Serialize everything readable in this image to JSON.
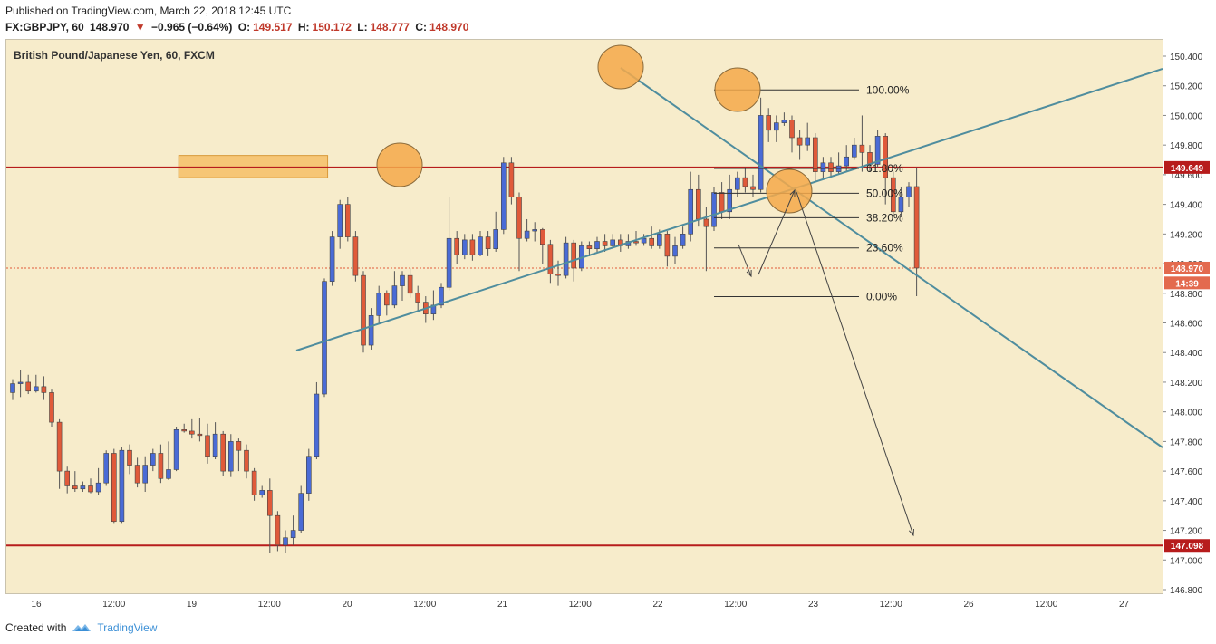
{
  "header": {
    "published": "Published on TradingView.com, March 22, 2018 12:45 UTC",
    "symbol": "FX:GBPJPY, 60",
    "last": "148.970",
    "change": "−0.965 (−0.64%)",
    "open_label": "O:",
    "open": "149.517",
    "high_label": "H:",
    "high": "150.172",
    "low_label": "L:",
    "low": "148.777",
    "close_label": "C:",
    "close": "148.970"
  },
  "footer": {
    "created_with": "Created with",
    "brand": "TradingView"
  },
  "colors": {
    "background": "#f7eccb",
    "up": "#4a6bd6",
    "down": "#e05a3a",
    "level": "#b71c1c",
    "zone": "#f5b95a",
    "trendline": "#4f8d9e"
  },
  "chart_data": {
    "type": "candlestick",
    "title": "British Pound/Japanese Yen, 60, FXCM",
    "ylim": [
      146.8,
      150.48
    ],
    "y_ticks": [
      "146.800",
      "147.000",
      "147.200",
      "147.400",
      "147.600",
      "147.800",
      "148.000",
      "148.200",
      "148.400",
      "148.600",
      "148.800",
      "149.000",
      "149.200",
      "149.400",
      "149.600",
      "149.800",
      "150.000",
      "150.200",
      "150.400"
    ],
    "x_ticks": [
      "16",
      "12:00",
      "19",
      "12:00",
      "20",
      "12:00",
      "21",
      "12:00",
      "22",
      "12:00",
      "23",
      "12:00",
      "26",
      "12:00",
      "27"
    ],
    "price_labels": [
      {
        "value": 149.649,
        "text": "149.649",
        "style": "level"
      },
      {
        "value": 148.97,
        "text": "148.970",
        "style": "current"
      },
      {
        "value": 148.87,
        "text": "14:39",
        "style": "current"
      },
      {
        "value": 147.098,
        "text": "147.098",
        "style": "level"
      }
    ],
    "horizontal_levels": [
      149.649,
      147.098
    ],
    "current_price_line": 148.97,
    "zones": [
      {
        "x_from": "19 20:00",
        "x_to": "21 18:00",
        "y_from": 149.58,
        "y_to": 149.73
      },
      {
        "x_from": "18 20:00",
        "x_to": "23 22:00",
        "y_from": 147.02,
        "y_to": 147.18
      }
    ],
    "fibonacci": {
      "levels": [
        {
          "label": "100.00%",
          "value": 150.172
        },
        {
          "label": "61.80%",
          "value": 149.642
        },
        {
          "label": "50.00%",
          "value": 149.475
        },
        {
          "label": "38.20%",
          "value": 149.31
        },
        {
          "label": "23.60%",
          "value": 149.106
        },
        {
          "label": "0.00%",
          "value": 148.777
        }
      ]
    },
    "candles": [
      [
        148.13,
        148.19,
        148.22,
        148.08
      ],
      [
        148.19,
        148.2,
        148.28,
        148.1
      ],
      [
        148.2,
        148.14,
        148.25,
        148.12
      ],
      [
        148.14,
        148.17,
        148.25,
        148.13
      ],
      [
        148.17,
        148.13,
        148.24,
        148.08
      ],
      [
        148.13,
        147.93,
        148.15,
        147.9
      ],
      [
        147.93,
        147.6,
        147.95,
        147.48
      ],
      [
        147.6,
        147.5,
        147.63,
        147.45
      ],
      [
        147.5,
        147.48,
        147.6,
        147.46
      ],
      [
        147.48,
        147.5,
        147.53,
        147.46
      ],
      [
        147.5,
        147.46,
        147.55,
        147.45
      ],
      [
        147.46,
        147.52,
        147.62,
        147.44
      ],
      [
        147.52,
        147.72,
        147.74,
        147.5
      ],
      [
        147.72,
        147.26,
        147.75,
        147.25
      ],
      [
        147.26,
        147.74,
        147.76,
        147.25
      ],
      [
        147.74,
        147.64,
        147.78,
        147.58
      ],
      [
        147.64,
        147.52,
        147.69,
        147.49
      ],
      [
        147.52,
        147.64,
        147.7,
        147.46
      ],
      [
        147.64,
        147.72,
        147.75,
        147.6
      ],
      [
        147.72,
        147.55,
        147.78,
        147.52
      ],
      [
        147.55,
        147.61,
        147.8,
        147.54
      ],
      [
        147.61,
        147.88,
        147.9,
        147.6
      ],
      [
        147.88,
        147.87,
        147.92,
        147.86
      ],
      [
        147.87,
        147.85,
        147.95,
        147.82
      ],
      [
        147.85,
        147.84,
        147.96,
        147.8
      ],
      [
        147.84,
        147.7,
        147.92,
        147.65
      ],
      [
        147.7,
        147.85,
        147.93,
        147.68
      ],
      [
        147.85,
        147.6,
        147.87,
        147.57
      ],
      [
        147.6,
        147.8,
        147.85,
        147.56
      ],
      [
        147.8,
        147.74,
        147.82,
        147.6
      ],
      [
        147.74,
        147.6,
        147.78,
        147.55
      ],
      [
        147.6,
        147.44,
        147.62,
        147.4
      ],
      [
        147.44,
        147.47,
        147.5,
        147.42
      ],
      [
        147.47,
        147.3,
        147.55,
        147.05
      ],
      [
        147.3,
        147.1,
        147.33,
        147.06
      ],
      [
        147.1,
        147.15,
        147.2,
        147.05
      ],
      [
        147.15,
        147.2,
        147.3,
        147.1
      ],
      [
        147.2,
        147.45,
        147.5,
        147.18
      ],
      [
        147.45,
        147.7,
        147.75,
        147.4
      ],
      [
        147.7,
        148.12,
        148.2,
        147.68
      ],
      [
        148.12,
        148.88,
        148.9,
        148.1
      ],
      [
        148.88,
        149.18,
        149.22,
        148.85
      ],
      [
        149.18,
        149.4,
        149.43,
        149.1
      ],
      [
        149.4,
        149.18,
        149.45,
        149.15
      ],
      [
        149.18,
        148.92,
        149.22,
        148.88
      ],
      [
        148.92,
        148.45,
        148.95,
        148.4
      ],
      [
        148.45,
        148.65,
        148.7,
        148.42
      ],
      [
        148.65,
        148.8,
        148.85,
        148.6
      ],
      [
        148.8,
        148.72,
        148.82,
        148.65
      ],
      [
        148.72,
        148.85,
        148.95,
        148.7
      ],
      [
        148.85,
        148.92,
        148.95,
        148.75
      ],
      [
        148.92,
        148.8,
        148.97,
        148.77
      ],
      [
        148.8,
        148.74,
        148.85,
        148.68
      ],
      [
        148.74,
        148.66,
        148.78,
        148.6
      ],
      [
        148.66,
        148.72,
        148.82,
        148.62
      ],
      [
        148.72,
        148.84,
        148.87,
        148.7
      ],
      [
        148.84,
        149.17,
        149.45,
        148.82
      ],
      [
        149.17,
        149.06,
        149.22,
        149.0
      ],
      [
        149.06,
        149.16,
        149.2,
        149.03
      ],
      [
        149.16,
        149.06,
        149.2,
        149.02
      ],
      [
        149.06,
        149.18,
        149.22,
        149.05
      ],
      [
        149.18,
        149.1,
        149.22,
        149.05
      ],
      [
        149.1,
        149.23,
        149.35,
        149.08
      ],
      [
        149.23,
        149.68,
        149.72,
        149.2
      ],
      [
        149.68,
        149.45,
        149.72,
        149.4
      ],
      [
        149.45,
        149.17,
        149.48,
        148.95
      ],
      [
        149.17,
        149.22,
        149.3,
        149.15
      ],
      [
        149.22,
        149.23,
        149.28,
        149.15
      ],
      [
        149.23,
        149.13,
        149.24,
        149.0
      ],
      [
        149.13,
        148.93,
        149.16,
        148.87
      ],
      [
        148.93,
        148.92,
        149.02,
        148.85
      ],
      [
        148.92,
        149.14,
        149.18,
        148.9
      ],
      [
        149.14,
        148.97,
        149.16,
        148.88
      ],
      [
        148.97,
        149.12,
        149.15,
        148.95
      ],
      [
        149.12,
        149.1,
        149.15,
        149.05
      ],
      [
        149.1,
        149.15,
        149.18,
        149.08
      ],
      [
        149.15,
        149.12,
        149.2,
        149.08
      ],
      [
        149.12,
        149.16,
        149.2,
        149.1
      ],
      [
        149.16,
        149.12,
        149.2,
        149.08
      ],
      [
        149.12,
        149.15,
        149.2,
        149.1
      ],
      [
        149.15,
        149.14,
        149.22,
        149.12
      ],
      [
        149.14,
        149.17,
        149.2,
        149.12
      ],
      [
        149.17,
        149.12,
        149.25,
        149.1
      ],
      [
        149.12,
        149.2,
        149.23,
        149.1
      ],
      [
        149.2,
        149.05,
        149.22,
        148.98
      ],
      [
        149.05,
        149.12,
        149.18,
        149.0
      ],
      [
        149.12,
        149.2,
        149.25,
        149.1
      ],
      [
        149.2,
        149.5,
        149.62,
        149.15
      ],
      [
        149.5,
        149.3,
        149.6,
        149.25
      ],
      [
        149.3,
        149.25,
        149.38,
        148.95
      ],
      [
        149.25,
        149.48,
        149.52,
        149.22
      ],
      [
        149.48,
        149.35,
        149.55,
        149.3
      ],
      [
        149.35,
        149.5,
        149.6,
        149.3
      ],
      [
        149.5,
        149.58,
        149.62,
        149.45
      ],
      [
        149.58,
        149.52,
        149.65,
        149.48
      ],
      [
        149.52,
        149.5,
        149.6,
        149.45
      ],
      [
        149.5,
        150.0,
        150.12,
        149.48
      ],
      [
        150.0,
        149.9,
        150.05,
        149.82
      ],
      [
        149.9,
        149.95,
        150.0,
        149.82
      ],
      [
        149.95,
        149.97,
        150.02,
        149.93
      ],
      [
        149.97,
        149.85,
        150.0,
        149.75
      ],
      [
        149.85,
        149.8,
        149.9,
        149.7
      ],
      [
        149.8,
        149.85,
        149.95,
        149.76
      ],
      [
        149.85,
        149.62,
        149.88,
        149.55
      ],
      [
        149.62,
        149.68,
        149.72,
        149.58
      ],
      [
        149.68,
        149.62,
        149.72,
        149.58
      ],
      [
        149.62,
        149.66,
        149.75,
        149.6
      ],
      [
        149.66,
        149.72,
        149.8,
        149.62
      ],
      [
        149.72,
        149.8,
        149.85,
        149.7
      ],
      [
        149.8,
        149.75,
        150.0,
        149.62
      ],
      [
        149.75,
        149.67,
        149.8,
        149.62
      ],
      [
        149.67,
        149.86,
        149.9,
        149.65
      ],
      [
        149.86,
        149.58,
        149.88,
        149.4
      ],
      [
        149.58,
        149.35,
        149.62,
        149.32
      ],
      [
        149.35,
        149.45,
        149.52,
        149.32
      ],
      [
        149.45,
        149.52,
        149.55,
        149.38
      ],
      [
        149.52,
        148.97,
        149.65,
        148.78
      ]
    ],
    "trendlines": [
      {
        "x1": "19 14:00",
        "y1": 148.41,
        "x2": "27 18:00",
        "y2": 150.31
      },
      {
        "x1": "21 22:00",
        "y1": 150.31,
        "x2": "27 18:00",
        "y2": 147.75
      }
    ]
  }
}
